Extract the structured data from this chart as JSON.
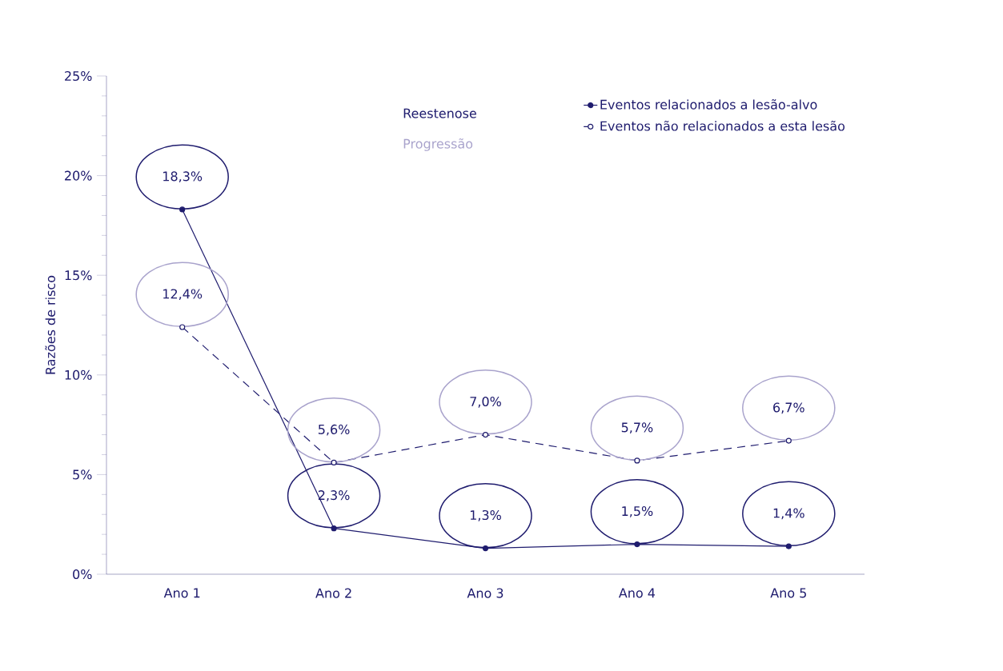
{
  "chart_data": {
    "type": "line",
    "ylabel": "Razões de risco",
    "categories": [
      "Ano 1",
      "Ano 2",
      "Ano 3",
      "Ano 4",
      "Ano 5"
    ],
    "ylim": [
      0,
      25
    ],
    "yticks": [
      {
        "value": 0,
        "label": "0%"
      },
      {
        "value": 5,
        "label": "5%"
      },
      {
        "value": 10,
        "label": "10%"
      },
      {
        "value": 15,
        "label": "15%"
      },
      {
        "value": 20,
        "label": "20%"
      },
      {
        "value": 25,
        "label": "25%"
      }
    ],
    "series": [
      {
        "name": "Eventos relacionados a lesão-alvo",
        "color": "#1f1c6e",
        "values": [
          18.3,
          2.3,
          1.3,
          1.5,
          1.4
        ],
        "value_labels": [
          "18,3%",
          "2,3%",
          "1,3%",
          "1,5%",
          "1,4%"
        ],
        "marker": "circle",
        "line_style": "solid"
      },
      {
        "name": "Eventos não relacionados a esta lesão",
        "color": "#1f1c6e",
        "values": [
          12.4,
          5.6,
          7.0,
          5.7,
          6.7
        ],
        "value_labels": [
          "12,4%",
          "5,6%",
          "7,0%",
          "5,7%",
          "6,7%"
        ],
        "marker": "circle",
        "line_style": "dashed"
      }
    ],
    "annotations": [
      "Reestenose",
      "Progressão"
    ],
    "legend": "top right",
    "grid": false
  }
}
